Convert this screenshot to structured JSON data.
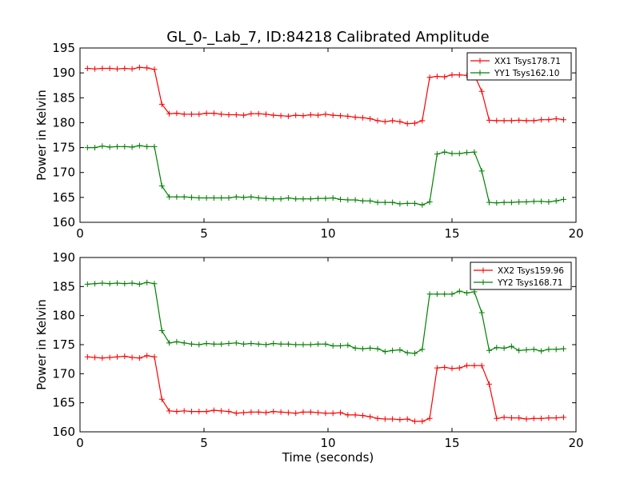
{
  "title": "GL_0-_Lab_7, ID:84218 Calibrated Amplitude",
  "colors": {
    "xx": "#ff0000",
    "yy": "#008000",
    "axis": "#000000",
    "background": "#ffffff"
  },
  "chart_data": [
    {
      "type": "line",
      "ylabel": "Power in Kelvin",
      "xlabel": "",
      "xlim": [
        0,
        20
      ],
      "ylim": [
        160,
        195
      ],
      "xticks": [
        0,
        5,
        10,
        15,
        20
      ],
      "yticks": [
        160,
        165,
        170,
        175,
        180,
        185,
        190,
        195
      ],
      "grid": false,
      "legend_position": "top-right",
      "x": [
        0.3,
        0.6,
        0.9,
        1.2,
        1.5,
        1.8,
        2.1,
        2.4,
        2.7,
        3.0,
        3.3,
        3.6,
        3.9,
        4.2,
        4.5,
        4.8,
        5.1,
        5.4,
        5.7,
        6.0,
        6.3,
        6.6,
        6.9,
        7.2,
        7.5,
        7.8,
        8.1,
        8.4,
        8.7,
        9.0,
        9.3,
        9.6,
        9.9,
        10.2,
        10.5,
        10.8,
        11.1,
        11.4,
        11.7,
        12.0,
        12.3,
        12.6,
        12.9,
        13.2,
        13.5,
        13.8,
        14.1,
        14.4,
        14.7,
        15.0,
        15.3,
        15.6,
        15.9,
        16.2,
        16.5,
        16.8,
        17.1,
        17.4,
        17.7,
        18.0,
        18.3,
        18.6,
        18.9,
        19.2,
        19.5
      ],
      "series": [
        {
          "name": "XX1 Tsys178.71",
          "color": "#ff0000",
          "values": [
            190.9,
            190.8,
            190.9,
            190.9,
            190.8,
            190.9,
            190.8,
            191.1,
            191.0,
            190.7,
            183.7,
            181.8,
            181.9,
            181.7,
            181.7,
            181.7,
            181.9,
            181.9,
            181.7,
            181.6,
            181.6,
            181.5,
            181.8,
            181.8,
            181.7,
            181.5,
            181.4,
            181.3,
            181.5,
            181.4,
            181.6,
            181.5,
            181.7,
            181.5,
            181.4,
            181.3,
            181.1,
            181.0,
            180.8,
            180.4,
            180.2,
            180.4,
            180.2,
            179.8,
            179.9,
            180.4,
            189.1,
            189.3,
            189.2,
            189.6,
            189.6,
            189.5,
            189.6,
            186.3,
            180.5,
            180.4,
            180.4,
            180.4,
            180.5,
            180.4,
            180.4,
            180.6,
            180.6,
            180.8,
            180.6
          ]
        },
        {
          "name": "YY1 Tsys162.10",
          "color": "#008000",
          "values": [
            175.0,
            175.0,
            175.3,
            175.1,
            175.2,
            175.2,
            175.1,
            175.4,
            175.2,
            175.2,
            167.3,
            165.1,
            165.1,
            165.1,
            165.0,
            164.9,
            164.9,
            164.9,
            164.9,
            164.9,
            165.1,
            165.0,
            165.1,
            164.9,
            164.8,
            164.7,
            164.7,
            164.9,
            164.7,
            164.7,
            164.7,
            164.8,
            164.8,
            164.9,
            164.6,
            164.5,
            164.5,
            164.3,
            164.3,
            164.0,
            164.0,
            164.0,
            163.7,
            163.8,
            163.8,
            163.5,
            164.1,
            173.7,
            174.1,
            173.8,
            173.8,
            174.0,
            174.1,
            170.3,
            164.0,
            163.9,
            164.0,
            164.0,
            164.1,
            164.1,
            164.2,
            164.2,
            164.1,
            164.3,
            164.6
          ]
        }
      ]
    },
    {
      "type": "line",
      "ylabel": "Power in Kelvin",
      "xlabel": "Time (seconds)",
      "xlim": [
        0,
        20
      ],
      "ylim": [
        160,
        190
      ],
      "xticks": [
        0,
        5,
        10,
        15,
        20
      ],
      "yticks": [
        160,
        165,
        170,
        175,
        180,
        185,
        190
      ],
      "grid": false,
      "legend_position": "top-right",
      "x": [
        0.3,
        0.6,
        0.9,
        1.2,
        1.5,
        1.8,
        2.1,
        2.4,
        2.7,
        3.0,
        3.3,
        3.6,
        3.9,
        4.2,
        4.5,
        4.8,
        5.1,
        5.4,
        5.7,
        6.0,
        6.3,
        6.6,
        6.9,
        7.2,
        7.5,
        7.8,
        8.1,
        8.4,
        8.7,
        9.0,
        9.3,
        9.6,
        9.9,
        10.2,
        10.5,
        10.8,
        11.1,
        11.4,
        11.7,
        12.0,
        12.3,
        12.6,
        12.9,
        13.2,
        13.5,
        13.8,
        14.1,
        14.4,
        14.7,
        15.0,
        15.3,
        15.6,
        15.9,
        16.2,
        16.5,
        16.8,
        17.1,
        17.4,
        17.7,
        18.0,
        18.3,
        18.6,
        18.9,
        19.2,
        19.5
      ],
      "series": [
        {
          "name": "XX2 Tsys159.96",
          "color": "#ff0000",
          "values": [
            172.9,
            172.8,
            172.7,
            172.8,
            172.9,
            173.0,
            172.8,
            172.7,
            173.1,
            172.9,
            165.6,
            163.6,
            163.5,
            163.6,
            163.5,
            163.5,
            163.5,
            163.7,
            163.6,
            163.5,
            163.2,
            163.3,
            163.4,
            163.4,
            163.3,
            163.5,
            163.4,
            163.3,
            163.2,
            163.4,
            163.4,
            163.3,
            163.2,
            163.2,
            163.3,
            162.9,
            162.9,
            162.8,
            162.6,
            162.3,
            162.2,
            162.2,
            162.1,
            162.2,
            161.8,
            161.8,
            162.3,
            171.0,
            171.1,
            170.9,
            171.0,
            171.4,
            171.4,
            171.4,
            168.2,
            162.3,
            162.5,
            162.4,
            162.4,
            162.2,
            162.3,
            162.3,
            162.4,
            162.4,
            162.5
          ]
        },
        {
          "name": "YY2 Tsys168.71",
          "color": "#008000",
          "values": [
            185.4,
            185.5,
            185.6,
            185.5,
            185.6,
            185.5,
            185.6,
            185.4,
            185.7,
            185.5,
            177.4,
            175.3,
            175.5,
            175.3,
            175.1,
            175.0,
            175.2,
            175.1,
            175.1,
            175.2,
            175.3,
            175.1,
            175.2,
            175.1,
            175.0,
            175.2,
            175.1,
            175.1,
            175.0,
            175.0,
            175.0,
            175.1,
            175.1,
            174.8,
            174.8,
            174.9,
            174.4,
            174.3,
            174.4,
            174.3,
            173.8,
            174.0,
            174.1,
            173.6,
            173.5,
            174.2,
            183.7,
            183.7,
            183.7,
            183.7,
            184.2,
            183.9,
            184.1,
            180.5,
            174.0,
            174.5,
            174.4,
            174.7,
            174.0,
            174.1,
            174.2,
            173.9,
            174.2,
            174.2,
            174.3
          ]
        }
      ]
    }
  ]
}
